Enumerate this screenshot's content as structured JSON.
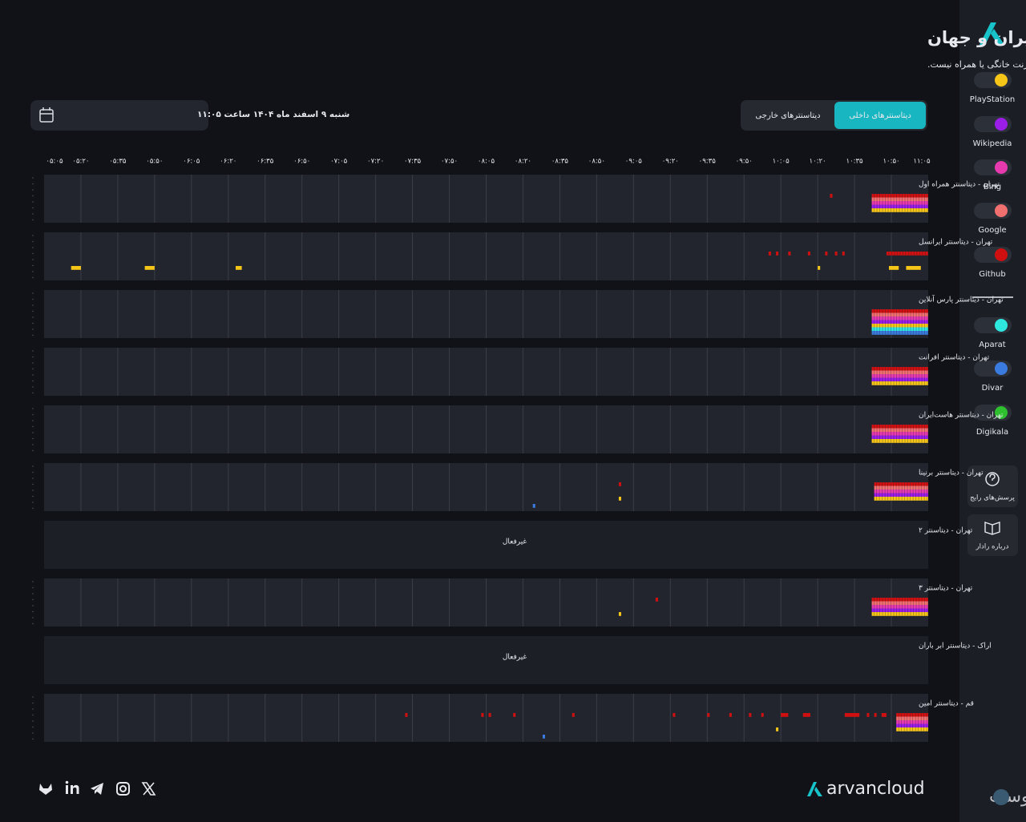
{
  "header": {
    "title": "وضعیت ارتباطات اینترنت ایران و جهان",
    "subtitle": "رادار آروان در لحظه وضعیت احتمالی ارتباطات اینترنت دیتاسنترهای ایران و جهان را از نگاه پاپ‌های ابر آروان رصد می‌کند و نمایانگر اختلال در اینترنت خانگی یا همراه نیست.",
    "date": "شنبه ۹ اسفند ماه ۱۴۰۴ ساعت ۱۱:۰۵",
    "tabs": [
      "دیتاسنترهای داخلی",
      "دیتاسنترهای خارجی"
    ]
  },
  "timeline": {
    "xlim": [
      0,
      360
    ],
    "xticks": [
      {
        "value": 0,
        "label": "۰۵:۰۵"
      },
      {
        "value": 15,
        "label": "۰۵:۲۰"
      },
      {
        "value": 30,
        "label": "۰۵:۳۵"
      },
      {
        "value": 45,
        "label": "۰۵:۵۰"
      },
      {
        "value": 60,
        "label": "۰۶:۰۵"
      },
      {
        "value": 75,
        "label": "۰۶:۲۰"
      },
      {
        "value": 90,
        "label": "۰۶:۳۵"
      },
      {
        "value": 105,
        "label": "۰۶:۵۰"
      },
      {
        "value": 120,
        "label": "۰۷:۰۵"
      },
      {
        "value": 135,
        "label": "۰۷:۲۰"
      },
      {
        "value": 150,
        "label": "۰۷:۳۵"
      },
      {
        "value": 165,
        "label": "۰۷:۵۰"
      },
      {
        "value": 180,
        "label": "۰۸:۰۵"
      },
      {
        "value": 195,
        "label": "۰۸:۲۰"
      },
      {
        "value": 210,
        "label": "۰۸:۳۵"
      },
      {
        "value": 225,
        "label": "۰۸:۵۰"
      },
      {
        "value": 240,
        "label": "۰۹:۰۵"
      },
      {
        "value": 255,
        "label": "۰۹:۲۰"
      },
      {
        "value": 270,
        "label": "۰۹:۳۵"
      },
      {
        "value": 285,
        "label": "۰۹:۵۰"
      },
      {
        "value": 300,
        "label": "۱۰:۰۵"
      },
      {
        "value": 315,
        "label": "۱۰:۲۰"
      },
      {
        "value": 330,
        "label": "۱۰:۳۵"
      },
      {
        "value": 345,
        "label": "۱۰:۵۰"
      },
      {
        "value": 360,
        "label": "۱۱:۰۵"
      }
    ],
    "rows": [
      {
        "label": "تهران - دیتاسنتر همراه اول",
        "outages": [
          [
            4,
            337,
            360
          ],
          [
            3,
            337,
            360
          ],
          [
            2,
            337,
            360
          ],
          [
            1,
            337,
            360
          ],
          [
            0,
            337,
            360
          ],
          [
            4,
            320,
            321
          ]
        ]
      },
      {
        "label": "تهران - دیتاسنتر ایرانسل",
        "outages": [
          [
            0,
            11,
            15
          ],
          [
            0,
            41,
            45
          ],
          [
            0,
            78,
            80.5
          ],
          [
            4,
            295,
            296
          ],
          [
            4,
            298,
            299
          ],
          [
            4,
            303,
            304
          ],
          [
            4,
            311,
            312
          ],
          [
            0,
            315,
            316
          ],
          [
            4,
            318,
            319
          ],
          [
            4,
            322,
            323
          ],
          [
            4,
            325,
            326
          ],
          [
            4,
            343,
            360
          ],
          [
            0,
            344,
            348
          ],
          [
            0,
            351,
            357
          ]
        ]
      },
      {
        "label": "تهران - دیتاسنتر پارس آنلاین",
        "outages": [
          [
            4,
            337,
            360
          ],
          [
            3,
            337,
            360
          ],
          [
            2,
            337,
            360
          ],
          [
            1,
            337,
            360
          ],
          [
            0,
            337,
            360
          ],
          [
            5,
            337,
            360
          ],
          [
            6,
            337,
            360
          ]
        ]
      },
      {
        "label": "تهران - دیتاسنتر افرانت",
        "outages": [
          [
            4,
            337,
            360
          ],
          [
            3,
            337,
            360
          ],
          [
            2,
            337,
            360
          ],
          [
            1,
            337,
            360
          ],
          [
            0,
            337,
            360
          ]
        ]
      },
      {
        "label": "تهران - دیتاسنتر هاست‌ایران",
        "outages": [
          [
            4,
            337,
            360
          ],
          [
            3,
            337,
            360
          ],
          [
            2,
            337,
            360
          ],
          [
            1,
            337,
            360
          ],
          [
            0,
            337,
            360
          ]
        ]
      },
      {
        "label": "تهران - دیتاسنتر برنینا",
        "outages": [
          [
            4,
            338,
            360
          ],
          [
            3,
            338,
            360
          ],
          [
            2,
            338,
            360
          ],
          [
            1,
            338,
            360
          ],
          [
            0,
            338,
            360
          ],
          [
            6,
            199,
            200
          ],
          [
            4,
            234,
            235
          ],
          [
            0,
            234,
            235
          ]
        ]
      },
      {
        "label": "تهران - دیتاسنتر ۲",
        "status": "غیرفعال"
      },
      {
        "label": "تهران - دیتاسنتر ۳",
        "outages": [
          [
            4,
            337,
            360
          ],
          [
            3,
            337,
            360
          ],
          [
            2,
            337,
            360
          ],
          [
            1,
            337,
            360
          ],
          [
            0,
            337,
            360
          ],
          [
            0,
            234,
            235
          ],
          [
            4,
            249,
            250
          ]
        ]
      },
      {
        "label": "اراک - دیتاسنتر ابر باران",
        "status": "غیرفعال"
      },
      {
        "label": "قم - دیتاسنتر امین",
        "outages": [
          [
            4,
            347,
            360
          ],
          [
            3,
            347,
            360
          ],
          [
            2,
            347,
            360
          ],
          [
            1,
            347,
            360
          ],
          [
            0,
            347,
            360
          ],
          [
            4,
            147,
            148
          ],
          [
            4,
            178,
            179
          ],
          [
            4,
            181,
            182
          ],
          [
            4,
            191,
            192
          ],
          [
            6,
            203,
            204
          ],
          [
            4,
            215,
            216
          ],
          [
            4,
            256,
            257
          ],
          [
            4,
            270,
            271
          ],
          [
            4,
            279,
            280
          ],
          [
            4,
            287,
            288
          ],
          [
            4,
            292,
            293
          ],
          [
            0,
            298,
            299
          ],
          [
            4,
            300,
            303
          ],
          [
            4,
            309,
            312
          ],
          [
            4,
            326,
            332
          ],
          [
            4,
            335,
            336
          ],
          [
            4,
            338,
            339
          ],
          [
            4,
            341,
            343
          ]
        ]
      }
    ]
  },
  "services": [
    {
      "name": "PlayStation",
      "color": "#f5c518"
    },
    {
      "name": "Wikipedia",
      "color": "#9b1de8"
    },
    {
      "name": "Bing",
      "color": "#e63aae"
    },
    {
      "name": "Google",
      "color": "#f07070"
    },
    {
      "name": "Github",
      "color": "#d01010"
    },
    {
      "name": "Aparat",
      "color": "#2ee8e0"
    },
    {
      "name": "Divar",
      "color": "#3a7be0"
    },
    {
      "name": "Digikala",
      "color": "#2ec02e"
    }
  ],
  "sidebar_buttons": [
    "پرسش‌های رایج",
    "درباره رادار"
  ],
  "footer": {
    "brand": "arvancloud",
    "watermark": "پیوست"
  }
}
